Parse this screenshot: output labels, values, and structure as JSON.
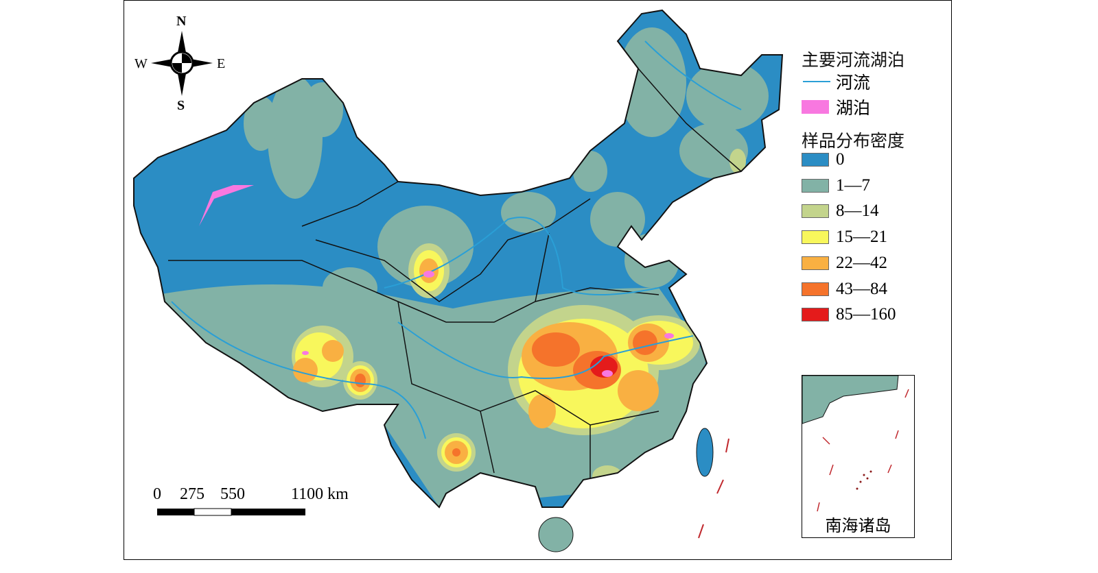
{
  "legend": {
    "water_title": "主要河流湖泊",
    "river_label": "河流",
    "lake_label": "湖泊",
    "river_color": "#2a9fd6",
    "lake_color": "#f878e0",
    "density_title": "样品分布密度",
    "classes": [
      {
        "label": "0",
        "color": "#2b8dc4"
      },
      {
        "label": "1—7",
        "color": "#82b2a6"
      },
      {
        "label": "8—14",
        "color": "#c3d48c"
      },
      {
        "label": "15—21",
        "color": "#f8f75c"
      },
      {
        "label": "22—42",
        "color": "#f9b042"
      },
      {
        "label": "43—84",
        "color": "#f5732b"
      },
      {
        "label": "85—160",
        "color": "#e41b1b"
      }
    ]
  },
  "compass": {
    "n": "N",
    "s": "S",
    "e": "E",
    "w": "W"
  },
  "scale": {
    "labels": [
      "0",
      "275",
      "550",
      "1100 km"
    ]
  },
  "inset": {
    "label": "南海诸岛"
  }
}
